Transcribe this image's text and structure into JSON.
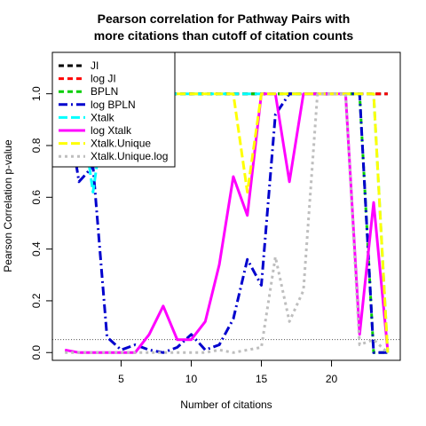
{
  "chart_data": {
    "type": "line",
    "title_lines": [
      "Pearson correlation for Pathway Pairs with",
      "more citations than cutoff of citation counts"
    ],
    "xlabel": "Number of citations",
    "ylabel": "Pearson Correlation p-value",
    "xlim": [
      0.1,
      24.9
    ],
    "ylim": [
      -0.03,
      1.16
    ],
    "xticks": [
      5,
      10,
      15,
      20
    ],
    "yticks": [
      0.0,
      0.2,
      0.4,
      0.6,
      0.8,
      1.0
    ],
    "ytick_labels": [
      "0.0",
      "0.2",
      "0.4",
      "0.6",
      "0.8",
      "1.0"
    ],
    "reference_line": 0.05,
    "legend_position": "top-left",
    "x": [
      1,
      2,
      3,
      4,
      5,
      6,
      7,
      8,
      9,
      10,
      11,
      12,
      13,
      14,
      15,
      16,
      17,
      18,
      19,
      20,
      21,
      22,
      23,
      24
    ],
    "series": [
      {
        "name": "JI",
        "color": "#000000",
        "dash": "6,4",
        "values": [
          1,
          1,
          1,
          1,
          1,
          1,
          1,
          1,
          1,
          1,
          1,
          1,
          1,
          1,
          1,
          1,
          1,
          1,
          1,
          1,
          1,
          1,
          1,
          1
        ]
      },
      {
        "name": "log JI",
        "color": "#ff0000",
        "dash": "6,4",
        "values": [
          1,
          1,
          1,
          1,
          1,
          1,
          1,
          1,
          1,
          1,
          1,
          1,
          1,
          1,
          1,
          1,
          1,
          1,
          1,
          1,
          1,
          1,
          1,
          1
        ]
      },
      {
        "name": "BPLN",
        "color": "#00cd00",
        "dash": "6,4",
        "values": [
          1,
          1,
          1,
          1,
          1,
          1,
          1,
          1,
          1,
          1,
          1,
          1,
          1,
          1,
          1,
          1,
          1,
          1,
          1,
          1,
          1,
          1,
          0.0,
          0.0
        ]
      },
      {
        "name": "log BPLN",
        "color": "#0000cd",
        "dash": "10,4,2,4",
        "values": [
          1,
          0.66,
          0.72,
          0.06,
          0.01,
          0.03,
          0.01,
          0.0,
          0.02,
          0.07,
          0.01,
          0.03,
          0.13,
          0.36,
          0.26,
          0.92,
          1,
          1,
          1,
          1,
          1,
          1,
          0.0,
          0.0
        ]
      },
      {
        "name": "Xtalk",
        "color": "#00ffff",
        "dash": "10,4",
        "values": [
          1,
          1,
          0.62,
          1,
          1,
          1,
          1,
          1,
          1,
          1,
          1,
          1,
          1,
          1,
          1,
          1,
          1,
          1,
          1,
          1,
          1,
          1,
          1,
          0.0
        ]
      },
      {
        "name": "log Xtalk",
        "color": "#ff00ff",
        "dash": "",
        "values": [
          0.01,
          0.0,
          0.0,
          0.0,
          0.0,
          0.0,
          0.07,
          0.18,
          0.05,
          0.05,
          0.12,
          0.34,
          0.68,
          0.53,
          1,
          1,
          0.66,
          1,
          1,
          1,
          1,
          0.07,
          0.58,
          0.01
        ]
      },
      {
        "name": "Xtalk.Unique",
        "color": "#ffff00",
        "dash": "10,4",
        "values": [
          1,
          1,
          1,
          1,
          1,
          1,
          1,
          1,
          1,
          1,
          1,
          1,
          1,
          0.62,
          1,
          1,
          1,
          1,
          1,
          1,
          1,
          1,
          1,
          0.0
        ]
      },
      {
        "name": "Xtalk.Unique.log",
        "color": "#bebebe",
        "dash": "3,4",
        "values": [
          0.0,
          0.0,
          0.0,
          0.0,
          0.0,
          0.0,
          0.0,
          0.0,
          0.0,
          0.0,
          0.0,
          0.01,
          0.0,
          0.01,
          0.02,
          0.37,
          0.12,
          0.24,
          1,
          1,
          1,
          0.03,
          0.05,
          0.0
        ]
      }
    ]
  }
}
